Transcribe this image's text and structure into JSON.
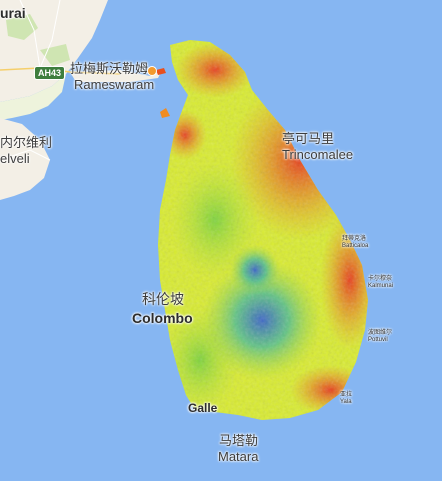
{
  "labels": {
    "top_left_fragment": "urai",
    "rameswaram_cn": "拉梅斯沃勒姆",
    "rameswaram_en": "Rameswaram",
    "highway": "AH43",
    "left_cn": "内尔维利",
    "left_en": "elveli",
    "trinco_cn": "亭可马里",
    "trinco_en": "Trincomalee",
    "batticaloa_cn": "拜蒂克洛",
    "batticaloa_en": "Batticaloa",
    "kalmunai_cn": "卡尔穆奈",
    "kalmunai_en": "Kalmunai",
    "pottuvil_cn": "波图维尔",
    "pottuvil_en": "Pottuvil",
    "yala_cn": "亚拉",
    "yala_en": "Yala",
    "colombo_cn": "科伦坡",
    "colombo_en": "Colombo",
    "galle_en": "Galle",
    "matara_cn": "马塔勒",
    "matara_en": "Matara"
  },
  "colors": {
    "ocean": "#86b6f2",
    "land": "#f3efe6",
    "heat_low": "#1f57d8",
    "heat_mid": "#e9f02a",
    "heat_high": "#d82712"
  }
}
